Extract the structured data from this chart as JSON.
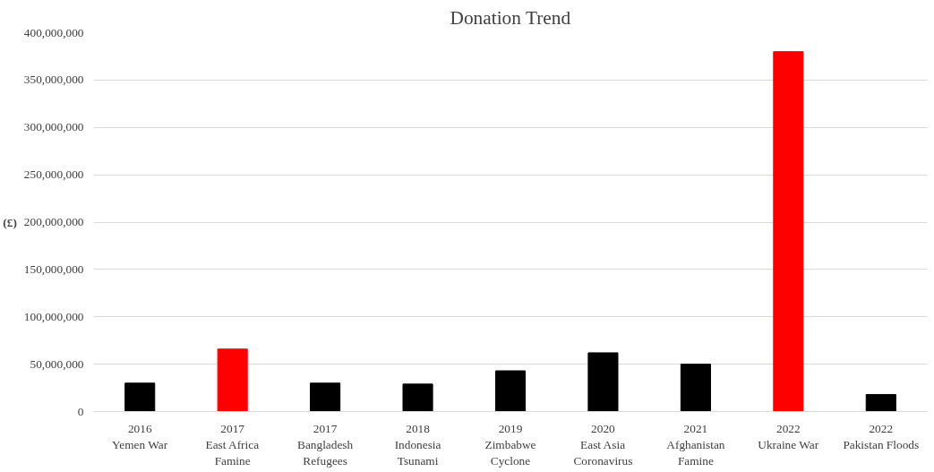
{
  "chart_data": {
    "type": "bar",
    "title": "Donation Trend",
    "ylabel": "(£)",
    "categories": [
      "2016\nYemen War",
      "2017\nEast Africa\nFamine",
      "2017\nBangladesh\nRefugees",
      "2018\nIndonesia\nTsunami",
      "2019\nZimbabwe\nCyclone",
      "2020\nEast Asia\nCoronavirus",
      "2021\nAfghanistan\nFamine",
      "2022\nUkraine War",
      "2022\nPakistan Floods"
    ],
    "values": [
      30000000,
      66000000,
      30000000,
      29000000,
      43000000,
      62000000,
      50000000,
      380000000,
      18000000
    ],
    "colors": [
      "#000000",
      "#ff0000",
      "#000000",
      "#000000",
      "#000000",
      "#000000",
      "#000000",
      "#ff0000",
      "#000000"
    ],
    "ylim": [
      0,
      400000000
    ],
    "yticks": [
      {
        "value": 0,
        "label": "0"
      },
      {
        "value": 50000000,
        "label": "50,000,000"
      },
      {
        "value": 100000000,
        "label": "100,000,000"
      },
      {
        "value": 150000000,
        "label": "150,000,000"
      },
      {
        "value": 200000000,
        "label": "200,000,000"
      },
      {
        "value": 250000000,
        "label": "250,000,000"
      },
      {
        "value": 300000000,
        "label": "300,000,000"
      },
      {
        "value": 350000000,
        "label": "350,000,000"
      },
      {
        "value": 400000000,
        "label": "400,000,000"
      }
    ],
    "grid": "y"
  }
}
